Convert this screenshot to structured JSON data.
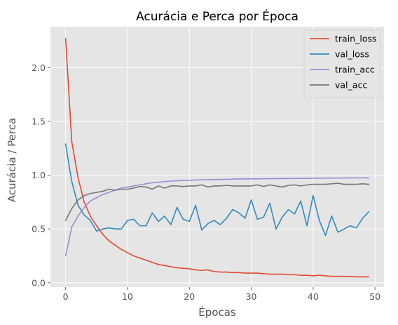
{
  "chart_data": {
    "type": "line",
    "title": "Acurácia e Perca por Época",
    "xlabel": "Épocas",
    "ylabel": "Acurácia / Perca",
    "xlim": [
      -2.45,
      51.45
    ],
    "ylim": [
      -0.04,
      2.38
    ],
    "xticks": [
      0,
      10,
      20,
      30,
      40,
      50
    ],
    "yticks": [
      0.0,
      0.5,
      1.0,
      1.5,
      2.0
    ],
    "xtick_labels": [
      "0",
      "10",
      "20",
      "30",
      "40",
      "50"
    ],
    "ytick_labels": [
      "0.0",
      "0.5",
      "1.0",
      "1.5",
      "2.0"
    ],
    "grid": true,
    "legend_position": "top-right",
    "x": [
      0,
      1,
      2,
      3,
      4,
      5,
      6,
      7,
      8,
      9,
      10,
      11,
      12,
      13,
      14,
      15,
      16,
      17,
      18,
      19,
      20,
      21,
      22,
      23,
      24,
      25,
      26,
      27,
      28,
      29,
      30,
      31,
      32,
      33,
      34,
      35,
      36,
      37,
      38,
      39,
      40,
      41,
      42,
      43,
      44,
      45,
      46,
      47,
      48,
      49
    ],
    "series": [
      {
        "name": "train_loss",
        "color": "#e24a33",
        "values": [
          2.27,
          1.31,
          0.98,
          0.75,
          0.62,
          0.53,
          0.45,
          0.39,
          0.35,
          0.31,
          0.28,
          0.25,
          0.23,
          0.21,
          0.19,
          0.17,
          0.16,
          0.15,
          0.14,
          0.135,
          0.13,
          0.12,
          0.115,
          0.12,
          0.105,
          0.1,
          0.1,
          0.095,
          0.095,
          0.09,
          0.09,
          0.09,
          0.085,
          0.08,
          0.08,
          0.08,
          0.075,
          0.075,
          0.07,
          0.07,
          0.065,
          0.07,
          0.065,
          0.06,
          0.06,
          0.06,
          0.058,
          0.055,
          0.055,
          0.055
        ]
      },
      {
        "name": "val_loss",
        "color": "#348abd",
        "values": [
          1.29,
          0.94,
          0.72,
          0.63,
          0.58,
          0.48,
          0.5,
          0.51,
          0.5,
          0.5,
          0.58,
          0.59,
          0.53,
          0.53,
          0.65,
          0.57,
          0.62,
          0.54,
          0.7,
          0.59,
          0.57,
          0.72,
          0.49,
          0.55,
          0.58,
          0.54,
          0.6,
          0.68,
          0.65,
          0.6,
          0.77,
          0.59,
          0.61,
          0.74,
          0.5,
          0.61,
          0.68,
          0.64,
          0.76,
          0.53,
          0.81,
          0.58,
          0.44,
          0.62,
          0.47,
          0.5,
          0.53,
          0.51,
          0.6,
          0.66
        ]
      },
      {
        "name": "train_acc",
        "color": "#988ed5",
        "values": [
          0.25,
          0.52,
          0.62,
          0.7,
          0.76,
          0.79,
          0.82,
          0.84,
          0.86,
          0.88,
          0.89,
          0.9,
          0.91,
          0.92,
          0.93,
          0.935,
          0.94,
          0.945,
          0.948,
          0.95,
          0.952,
          0.955,
          0.957,
          0.958,
          0.96,
          0.96,
          0.962,
          0.963,
          0.965,
          0.965,
          0.966,
          0.966,
          0.967,
          0.967,
          0.968,
          0.968,
          0.969,
          0.97,
          0.97,
          0.97,
          0.971,
          0.972,
          0.972,
          0.973,
          0.973,
          0.974,
          0.974,
          0.975,
          0.975,
          0.975
        ]
      },
      {
        "name": "val_acc",
        "color": "#777777",
        "values": [
          0.58,
          0.69,
          0.77,
          0.81,
          0.83,
          0.84,
          0.85,
          0.87,
          0.86,
          0.87,
          0.87,
          0.88,
          0.895,
          0.89,
          0.87,
          0.9,
          0.88,
          0.9,
          0.9,
          0.895,
          0.9,
          0.9,
          0.91,
          0.89,
          0.9,
          0.9,
          0.905,
          0.9,
          0.9,
          0.9,
          0.9,
          0.91,
          0.895,
          0.91,
          0.9,
          0.89,
          0.905,
          0.91,
          0.9,
          0.91,
          0.915,
          0.915,
          0.915,
          0.92,
          0.925,
          0.915,
          0.915,
          0.915,
          0.92,
          0.915
        ]
      }
    ]
  }
}
